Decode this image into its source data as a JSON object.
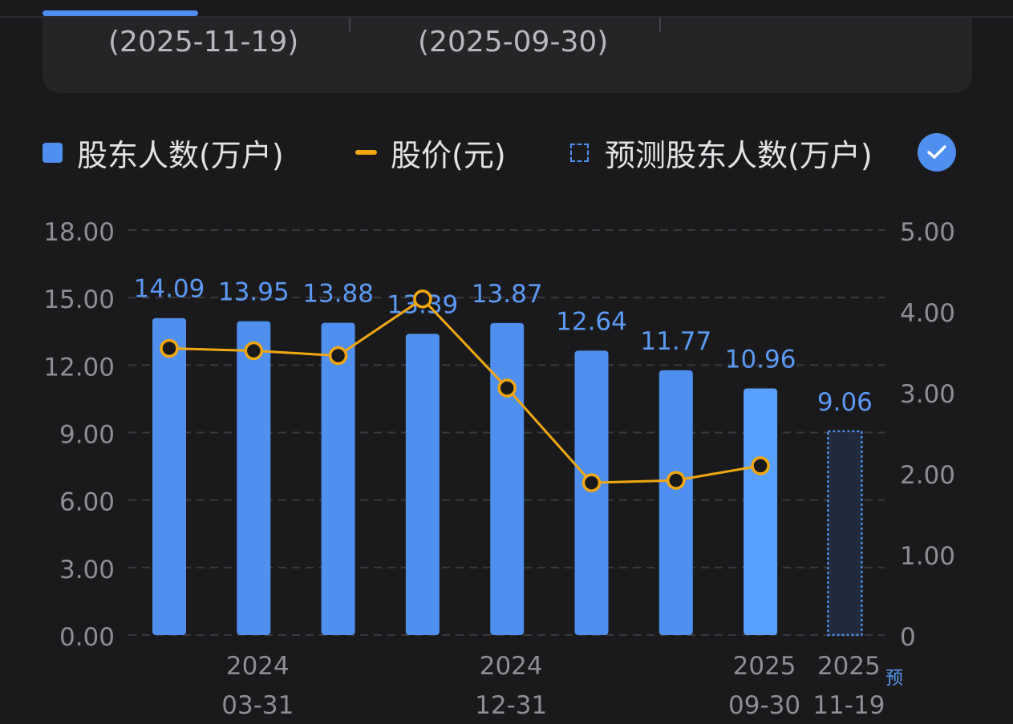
{
  "header": {
    "dates": [
      "(2025-11-19)",
      "(2025-09-30)"
    ]
  },
  "legend": {
    "holders_label": "股东人数(万户)",
    "price_label": "股价(元)",
    "forecast_label": "预测股东人数(万户)"
  },
  "colors": {
    "bar": "#4e8ff0",
    "bar_latest": "#58a0ff",
    "line": "#f3a712",
    "label": "#5a9af5",
    "axis_text": "#8e8e93",
    "grid": "#3a3a3e"
  },
  "chart_data": {
    "type": "bar",
    "categories": [
      "",
      "2024\n03-31",
      "",
      "",
      "2024\n12-31",
      "",
      "",
      "2025\n09-30",
      "2025\n11-19"
    ],
    "series": [
      {
        "name": "股东人数(万户)",
        "type": "bar",
        "axis": "left",
        "values": [
          14.09,
          13.95,
          13.88,
          13.39,
          13.87,
          12.64,
          11.77,
          10.96,
          null
        ],
        "labels": [
          "14.09",
          "13.95",
          "13.88",
          "13.39",
          "13.87",
          "12.64",
          "11.77",
          "10.96",
          null
        ]
      },
      {
        "name": "股价(元)",
        "type": "line",
        "axis": "right",
        "values": [
          3.54,
          3.51,
          3.45,
          4.15,
          3.05,
          1.88,
          1.91,
          2.09,
          null
        ]
      },
      {
        "name": "预测股东人数(万户)",
        "type": "bar-forecast",
        "axis": "left",
        "values": [
          null,
          null,
          null,
          null,
          null,
          null,
          null,
          null,
          9.06
        ],
        "labels": [
          null,
          null,
          null,
          null,
          null,
          null,
          null,
          null,
          "9.06"
        ]
      }
    ],
    "ylim_left": [
      0,
      18
    ],
    "yticks_left": [
      "0.00",
      "3.00",
      "6.00",
      "9.00",
      "12.00",
      "15.00",
      "18.00"
    ],
    "ylim_right": [
      0,
      5
    ],
    "yticks_right": [
      "0",
      "1.00",
      "2.00",
      "3.00",
      "4.00",
      "5.00"
    ],
    "forecast_mark": "预",
    "grid": true,
    "legend_position": "top"
  }
}
